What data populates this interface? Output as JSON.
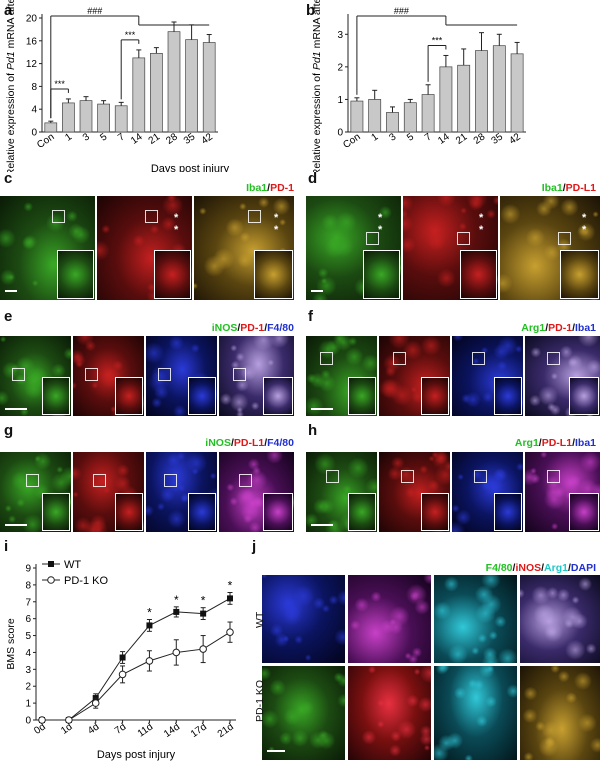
{
  "panels": {
    "a": "a",
    "b": "b",
    "c": "c",
    "d": "d",
    "e": "e",
    "f": "f",
    "g": "g",
    "h": "h",
    "i": "i",
    "j": "j"
  },
  "stains": {
    "c": [
      {
        "t": "Iba1",
        "c": "#22c022"
      },
      {
        "t": "/",
        "c": "#111111"
      },
      {
        "t": "PD-1",
        "c": "#e01818"
      }
    ],
    "d": [
      {
        "t": "Iba1",
        "c": "#22c022"
      },
      {
        "t": "/",
        "c": "#111111"
      },
      {
        "t": "PD-L1",
        "c": "#e01818"
      }
    ],
    "e": [
      {
        "t": "iNOS",
        "c": "#22c022"
      },
      {
        "t": "/",
        "c": "#111111"
      },
      {
        "t": "PD-1",
        "c": "#e01818"
      },
      {
        "t": "/",
        "c": "#111111"
      },
      {
        "t": "F4/80",
        "c": "#2030d0"
      }
    ],
    "f": [
      {
        "t": "Arg1",
        "c": "#22c022"
      },
      {
        "t": "/",
        "c": "#111111"
      },
      {
        "t": "PD-1",
        "c": "#e01818"
      },
      {
        "t": "/",
        "c": "#111111"
      },
      {
        "t": "Iba1",
        "c": "#2030d0"
      }
    ],
    "g": [
      {
        "t": "iNOS",
        "c": "#22c022"
      },
      {
        "t": "/",
        "c": "#111111"
      },
      {
        "t": "PD-L1",
        "c": "#e01818"
      },
      {
        "t": "/",
        "c": "#111111"
      },
      {
        "t": "F4/80",
        "c": "#2030d0"
      }
    ],
    "h": [
      {
        "t": "Arg1",
        "c": "#22c022"
      },
      {
        "t": "/",
        "c": "#111111"
      },
      {
        "t": "PD-L1",
        "c": "#e01818"
      },
      {
        "t": "/",
        "c": "#111111"
      },
      {
        "t": "Iba1",
        "c": "#2030d0"
      }
    ],
    "j": [
      {
        "t": "F4/80",
        "c": "#22c022"
      },
      {
        "t": "/",
        "c": "#111111"
      },
      {
        "t": "iNOS",
        "c": "#e01818"
      },
      {
        "t": "/",
        "c": "#111111"
      },
      {
        "t": "Arg1",
        "c": "#20c8c8"
      },
      {
        "t": "/",
        "c": "#111111"
      },
      {
        "t": "DAPI",
        "c": "#2030d0"
      }
    ]
  },
  "j_rows": {
    "wt": "WT",
    "ko": "PD-1 KO"
  },
  "chart_data": [
    {
      "id": "a",
      "type": "bar",
      "categories": [
        "Con",
        "1",
        "3",
        "5",
        "7",
        "14",
        "21",
        "28",
        "35",
        "42"
      ],
      "values": [
        1.6,
        5.1,
        5.5,
        4.9,
        4.6,
        13.0,
        13.8,
        17.6,
        16.2,
        15.7
      ],
      "errors": [
        0.3,
        0.7,
        0.7,
        0.6,
        0.6,
        1.4,
        1.0,
        1.7,
        2.6,
        1.4
      ],
      "xlabel": "Days post injury",
      "ylabel_parts": [
        "Relative expression of ",
        "Pd1",
        " mRNA after SCI"
      ],
      "yticks": [
        0,
        4,
        8,
        12,
        16,
        20
      ],
      "ylim": [
        0,
        20
      ],
      "annotations": [
        {
          "text": "***",
          "from": "Con",
          "to": "1"
        },
        {
          "text": "***",
          "from": "7",
          "to": "14"
        },
        {
          "text": "###",
          "from": "Con",
          "to": "14"
        }
      ]
    },
    {
      "id": "b",
      "type": "bar",
      "categories": [
        "Con",
        "1",
        "3",
        "5",
        "7",
        "14",
        "21",
        "28",
        "35",
        "42"
      ],
      "values": [
        0.95,
        1.0,
        0.6,
        0.9,
        1.15,
        2.0,
        2.05,
        2.5,
        2.65,
        2.4
      ],
      "errors": [
        0.1,
        0.28,
        0.17,
        0.1,
        0.3,
        0.35,
        0.5,
        0.55,
        0.35,
        0.35
      ],
      "xlabel": "",
      "ylabel_parts": [
        "Relative expression of ",
        "Pd1",
        " mRNA after SCI"
      ],
      "yticks": [
        0,
        1,
        2,
        3
      ],
      "ylim": [
        0,
        3.5
      ],
      "annotations": [
        {
          "text": "***",
          "from": "7",
          "to": "14"
        },
        {
          "text": "###",
          "from": "Con",
          "to": "14"
        }
      ]
    },
    {
      "id": "i",
      "type": "line",
      "x": [
        "0d",
        "1d",
        "4d",
        "7d",
        "11d",
        "14d",
        "17d",
        "21d"
      ],
      "series": [
        {
          "name": "WT",
          "marker": "square",
          "values": [
            0,
            0,
            1.3,
            3.7,
            5.6,
            6.4,
            6.3,
            7.2
          ],
          "errors": [
            0,
            0,
            0.25,
            0.35,
            0.35,
            0.3,
            0.35,
            0.35
          ]
        },
        {
          "name": "PD-1 KO",
          "marker": "circle",
          "values": [
            0,
            0,
            1.0,
            2.7,
            3.5,
            4.0,
            4.2,
            5.2
          ],
          "errors": [
            0,
            0,
            0.3,
            0.5,
            0.6,
            0.75,
            0.8,
            0.6
          ]
        }
      ],
      "significant": [
        "11d",
        "14d",
        "17d",
        "21d"
      ],
      "sig_mark": "*",
      "xlabel": "Days post injury",
      "ylabel": "BMS score",
      "yticks": [
        0,
        1,
        2,
        3,
        4,
        5,
        6,
        7,
        8,
        9
      ],
      "ylim": [
        0,
        9
      ],
      "legend": "top-left"
    }
  ]
}
